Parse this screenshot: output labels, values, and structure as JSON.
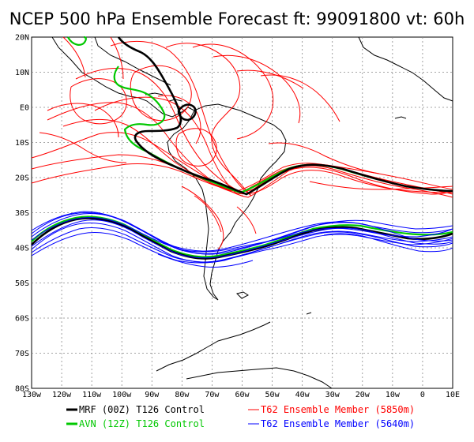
{
  "title": "NCEP 500 hPa Ensemble Forecast  ft: 99091800 vt: 60h",
  "lat_labels": [
    "20N",
    "10N",
    "E0",
    "10S",
    "20S",
    "30S",
    "40S",
    "50S",
    "60S",
    "70S",
    "80S"
  ],
  "lon_labels": [
    "130w",
    "120w",
    "110w",
    "100w",
    "90w",
    "80w",
    "70w",
    "60w",
    "50w",
    "40w",
    "30w",
    "20w",
    "10w",
    "0",
    "10E"
  ],
  "legend": [
    {
      "label": "MRF (00Z) T126 Control",
      "color": "#000000",
      "width": 3
    },
    {
      "label": "AVN (12Z) T126 Control",
      "color": "#00c800",
      "width": 3
    },
    {
      "label": "T62 Ensemble Member (5850m)",
      "color": "#ff0000",
      "width": 1
    },
    {
      "label": "T62 Ensemble Member (5640m)",
      "color": "#0000ff",
      "width": 1
    }
  ],
  "colors": {
    "mrf": "#000000",
    "avn": "#00c800",
    "member_5850": "#ff0000",
    "member_5640": "#0000ff",
    "grid": "#888888",
    "coast": "#000000"
  }
}
